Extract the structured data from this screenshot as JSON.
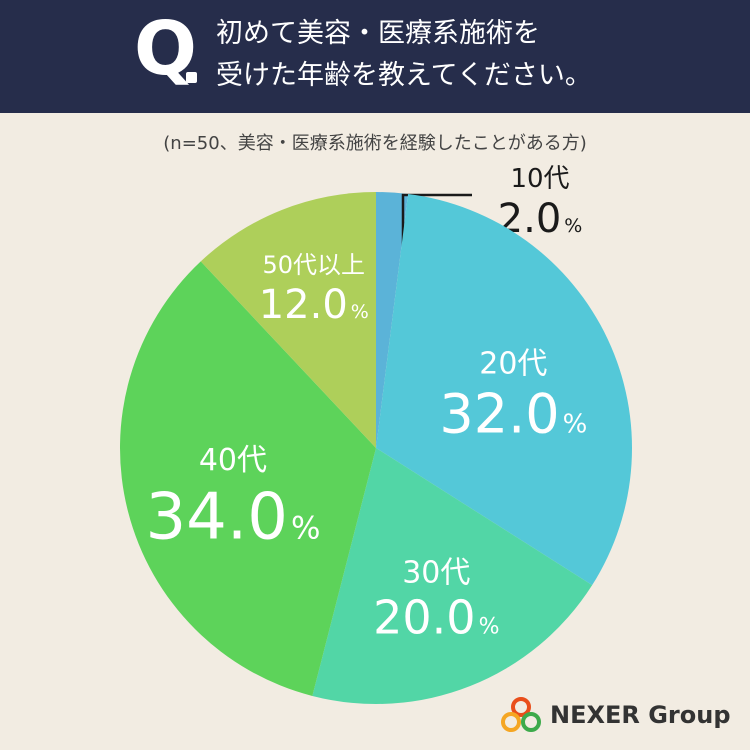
{
  "header": {
    "q_label": "Q",
    "question_line1": "初めて美容・医療系施術を",
    "question_line2": "受けた年齢を教えてください。"
  },
  "note": "(n=50、美容・医療系施術を経験したことがある方)",
  "logo": {
    "text": "NEXER Group"
  },
  "chart_data": {
    "type": "pie",
    "title": "初めて美容・医療系施術を受けた年齢を教えてください。",
    "subtitle": "(n=50、美容・医療系施術を経験したことがある方)",
    "unit": "%",
    "slices": [
      {
        "label": "10代",
        "value": 2.0,
        "value_text": "2.0",
        "color": "#5BB3D8"
      },
      {
        "label": "20代",
        "value": 32.0,
        "value_text": "32.0",
        "color": "#54C8D8"
      },
      {
        "label": "30代",
        "value": 20.0,
        "value_text": "20.0",
        "color": "#52D6A6"
      },
      {
        "label": "40代",
        "value": 34.0,
        "value_text": "34.0",
        "color": "#5DD35A"
      },
      {
        "label": "50代以上",
        "value": 12.0,
        "value_text": "12.0",
        "color": "#AECF5A"
      }
    ]
  }
}
